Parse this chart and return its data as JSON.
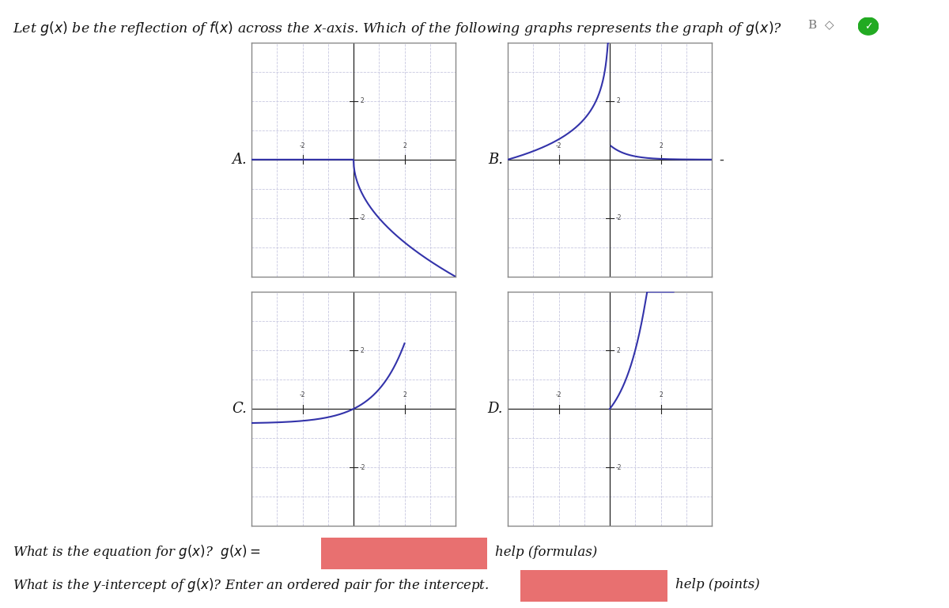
{
  "title_text": "Let $g(x)$ be the reflection of $f(x)$ across the $x$-axis. Which of the following graphs represents the graph of $g(x)$?",
  "graph_labels": [
    "A.",
    "B.",
    "C.",
    "D."
  ],
  "curve_color": "#3333aa",
  "grid_color": "#c8c8e0",
  "axis_color": "#222222",
  "box_color": "#888888",
  "bg_color": "#ffffff",
  "input_box_color": "#e87070",
  "question1": "What is the equation for $g(x)$?  $g(x)=$",
  "question2": "What is the $y$-intercept of $g(x)$? Enter an ordered pair for the intercept.",
  "help1": "help (formulas)",
  "help2": "help (points)",
  "answer_b": "B",
  "answer_diamond": "◇",
  "answer_check": "✓",
  "dash_after_B": "-"
}
